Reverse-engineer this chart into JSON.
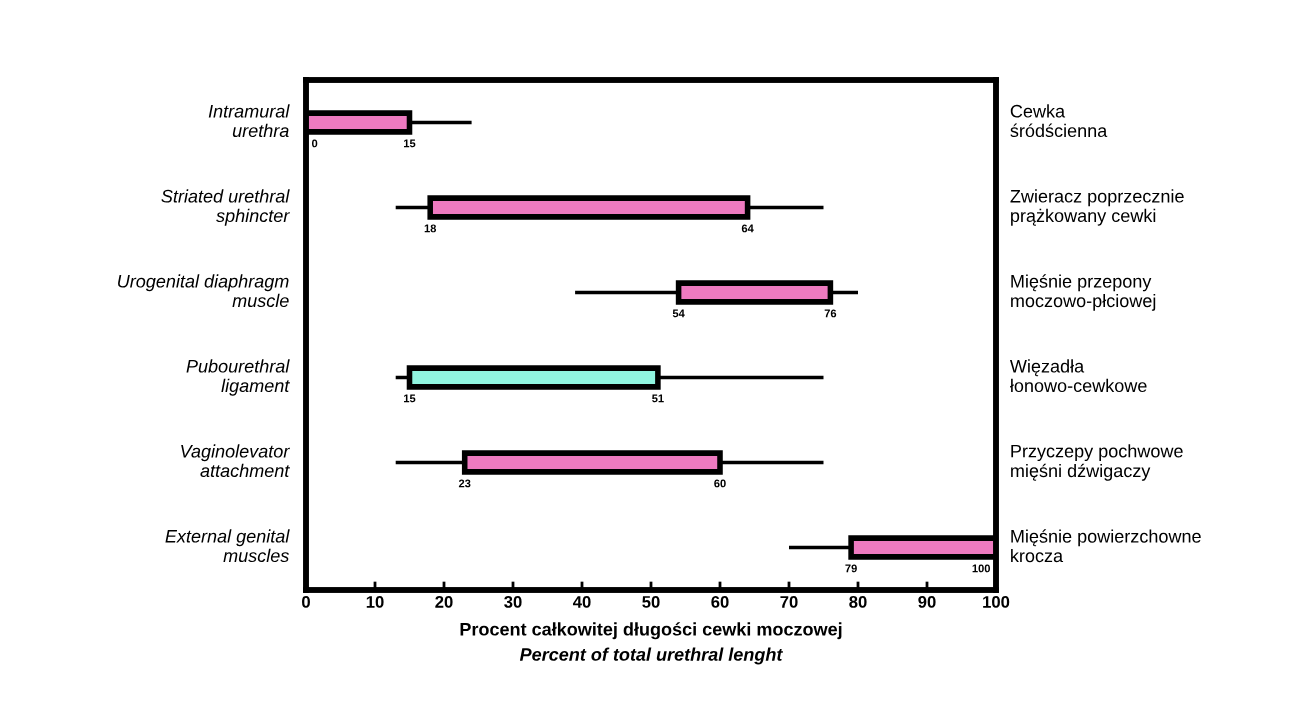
{
  "chart_data": {
    "type": "bar",
    "orientation": "horizontal",
    "categories": [
      "Intramural\nurethra",
      "Striated urethral\nsphincter",
      "Urogenital diaphragm\nmuscle",
      "Pubourethral\nligament",
      "Vaginolevator\nattachment",
      "External genital\nmuscles"
    ],
    "y2_categories": [
      "Cewka\nśródścienna",
      "Zwieracz poprzecznie\nprążkowany cewki",
      "Mięśnie przepony\nmoczowo-płciowej",
      "Więzadła\nłonowo-cewkowe",
      "Przyczepy pochwowe\nmięśni dźwigaczy",
      "Mięśnie powierzchowne\nkrocza"
    ],
    "base": [
      0,
      18,
      54,
      15,
      23,
      79
    ],
    "values": [
      15,
      46,
      22,
      36,
      37,
      21
    ],
    "errors": [
      [
        15,
        24
      ],
      [
        13,
        75
      ],
      [
        39,
        80
      ],
      [
        13,
        75
      ],
      [
        13,
        75
      ],
      [
        70,
        79
      ]
    ],
    "colors": [
      "#ee7ac0",
      "#ee7ac0",
      "#ee7ac0",
      "#90f5e0",
      "#ee7ac0",
      "#ee7ac0"
    ],
    "xlim": [
      0,
      100
    ],
    "xticks": [
      0,
      10,
      20,
      30,
      40,
      50,
      60,
      70,
      80,
      90,
      100
    ],
    "xlabel": "Procent całkowitej długości cewki moczowej",
    "grid": false,
    "annotations": [
      {
        "text": "0",
        "x": 0,
        "y": "Intramural\nurethra"
      },
      {
        "text": "15",
        "x": 15,
        "y": "Intramural\nurethra"
      },
      {
        "text": "18",
        "x": 18,
        "y": "Striated urethral\nsphincter"
      },
      {
        "text": "64",
        "x": 64,
        "y": "Striated urethral\nsphincter"
      },
      {
        "text": "54",
        "x": 54,
        "y": "Urogenital diaphragm\nmuscle"
      },
      {
        "text": "76",
        "x": 76,
        "y": "Urogenital diaphragm\nmuscle"
      },
      {
        "text": "15",
        "x": 15,
        "y": "Pubourethral\nligament"
      },
      {
        "text": "51",
        "x": 51,
        "y": "Pubourethral\nligament"
      },
      {
        "text": "23",
        "x": 23,
        "y": "Vaginolevator\nattachment"
      },
      {
        "text": "60",
        "x": 60,
        "y": "Vaginolevator\nattachment"
      },
      {
        "text": "79",
        "x": 79,
        "y": "External genital\nmuscles"
      },
      {
        "text": "100",
        "x": 100,
        "y": "External genital\nmuscles"
      },
      "Percent of total urethral lenght"
    ]
  }
}
